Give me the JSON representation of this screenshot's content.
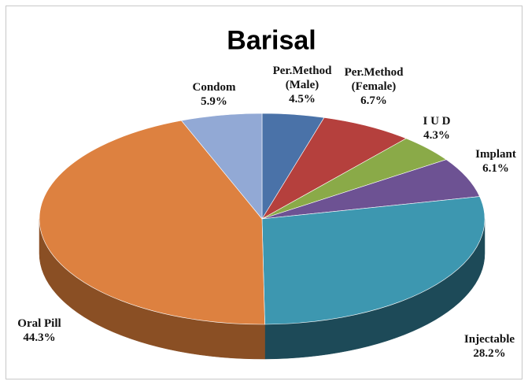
{
  "chart_data": {
    "type": "pie3d",
    "title": "Barisal",
    "categories": [
      "Per.Method (Male)",
      "Per.Method (Female)",
      "I U D",
      "Implant",
      "Injectable",
      "Oral Pill",
      "Condom"
    ],
    "values": [
      4.5,
      6.7,
      4.3,
      6.1,
      28.2,
      44.3,
      5.9
    ],
    "value_labels": [
      "4.5%",
      "6.7%",
      "4.3%",
      "6.1%",
      "28.2%",
      "44.3%",
      "5.9%"
    ],
    "colors": [
      "#4a72a8",
      "#b5403d",
      "#8aaa48",
      "#6d5293",
      "#3d97b0",
      "#dd8140",
      "#92a9d5"
    ],
    "side_colors": [
      "#2e4d77",
      "#7c2826",
      "#5d7630",
      "#4a3766",
      "#1d4a58",
      "#8a4f24",
      "#5f739a"
    ]
  }
}
